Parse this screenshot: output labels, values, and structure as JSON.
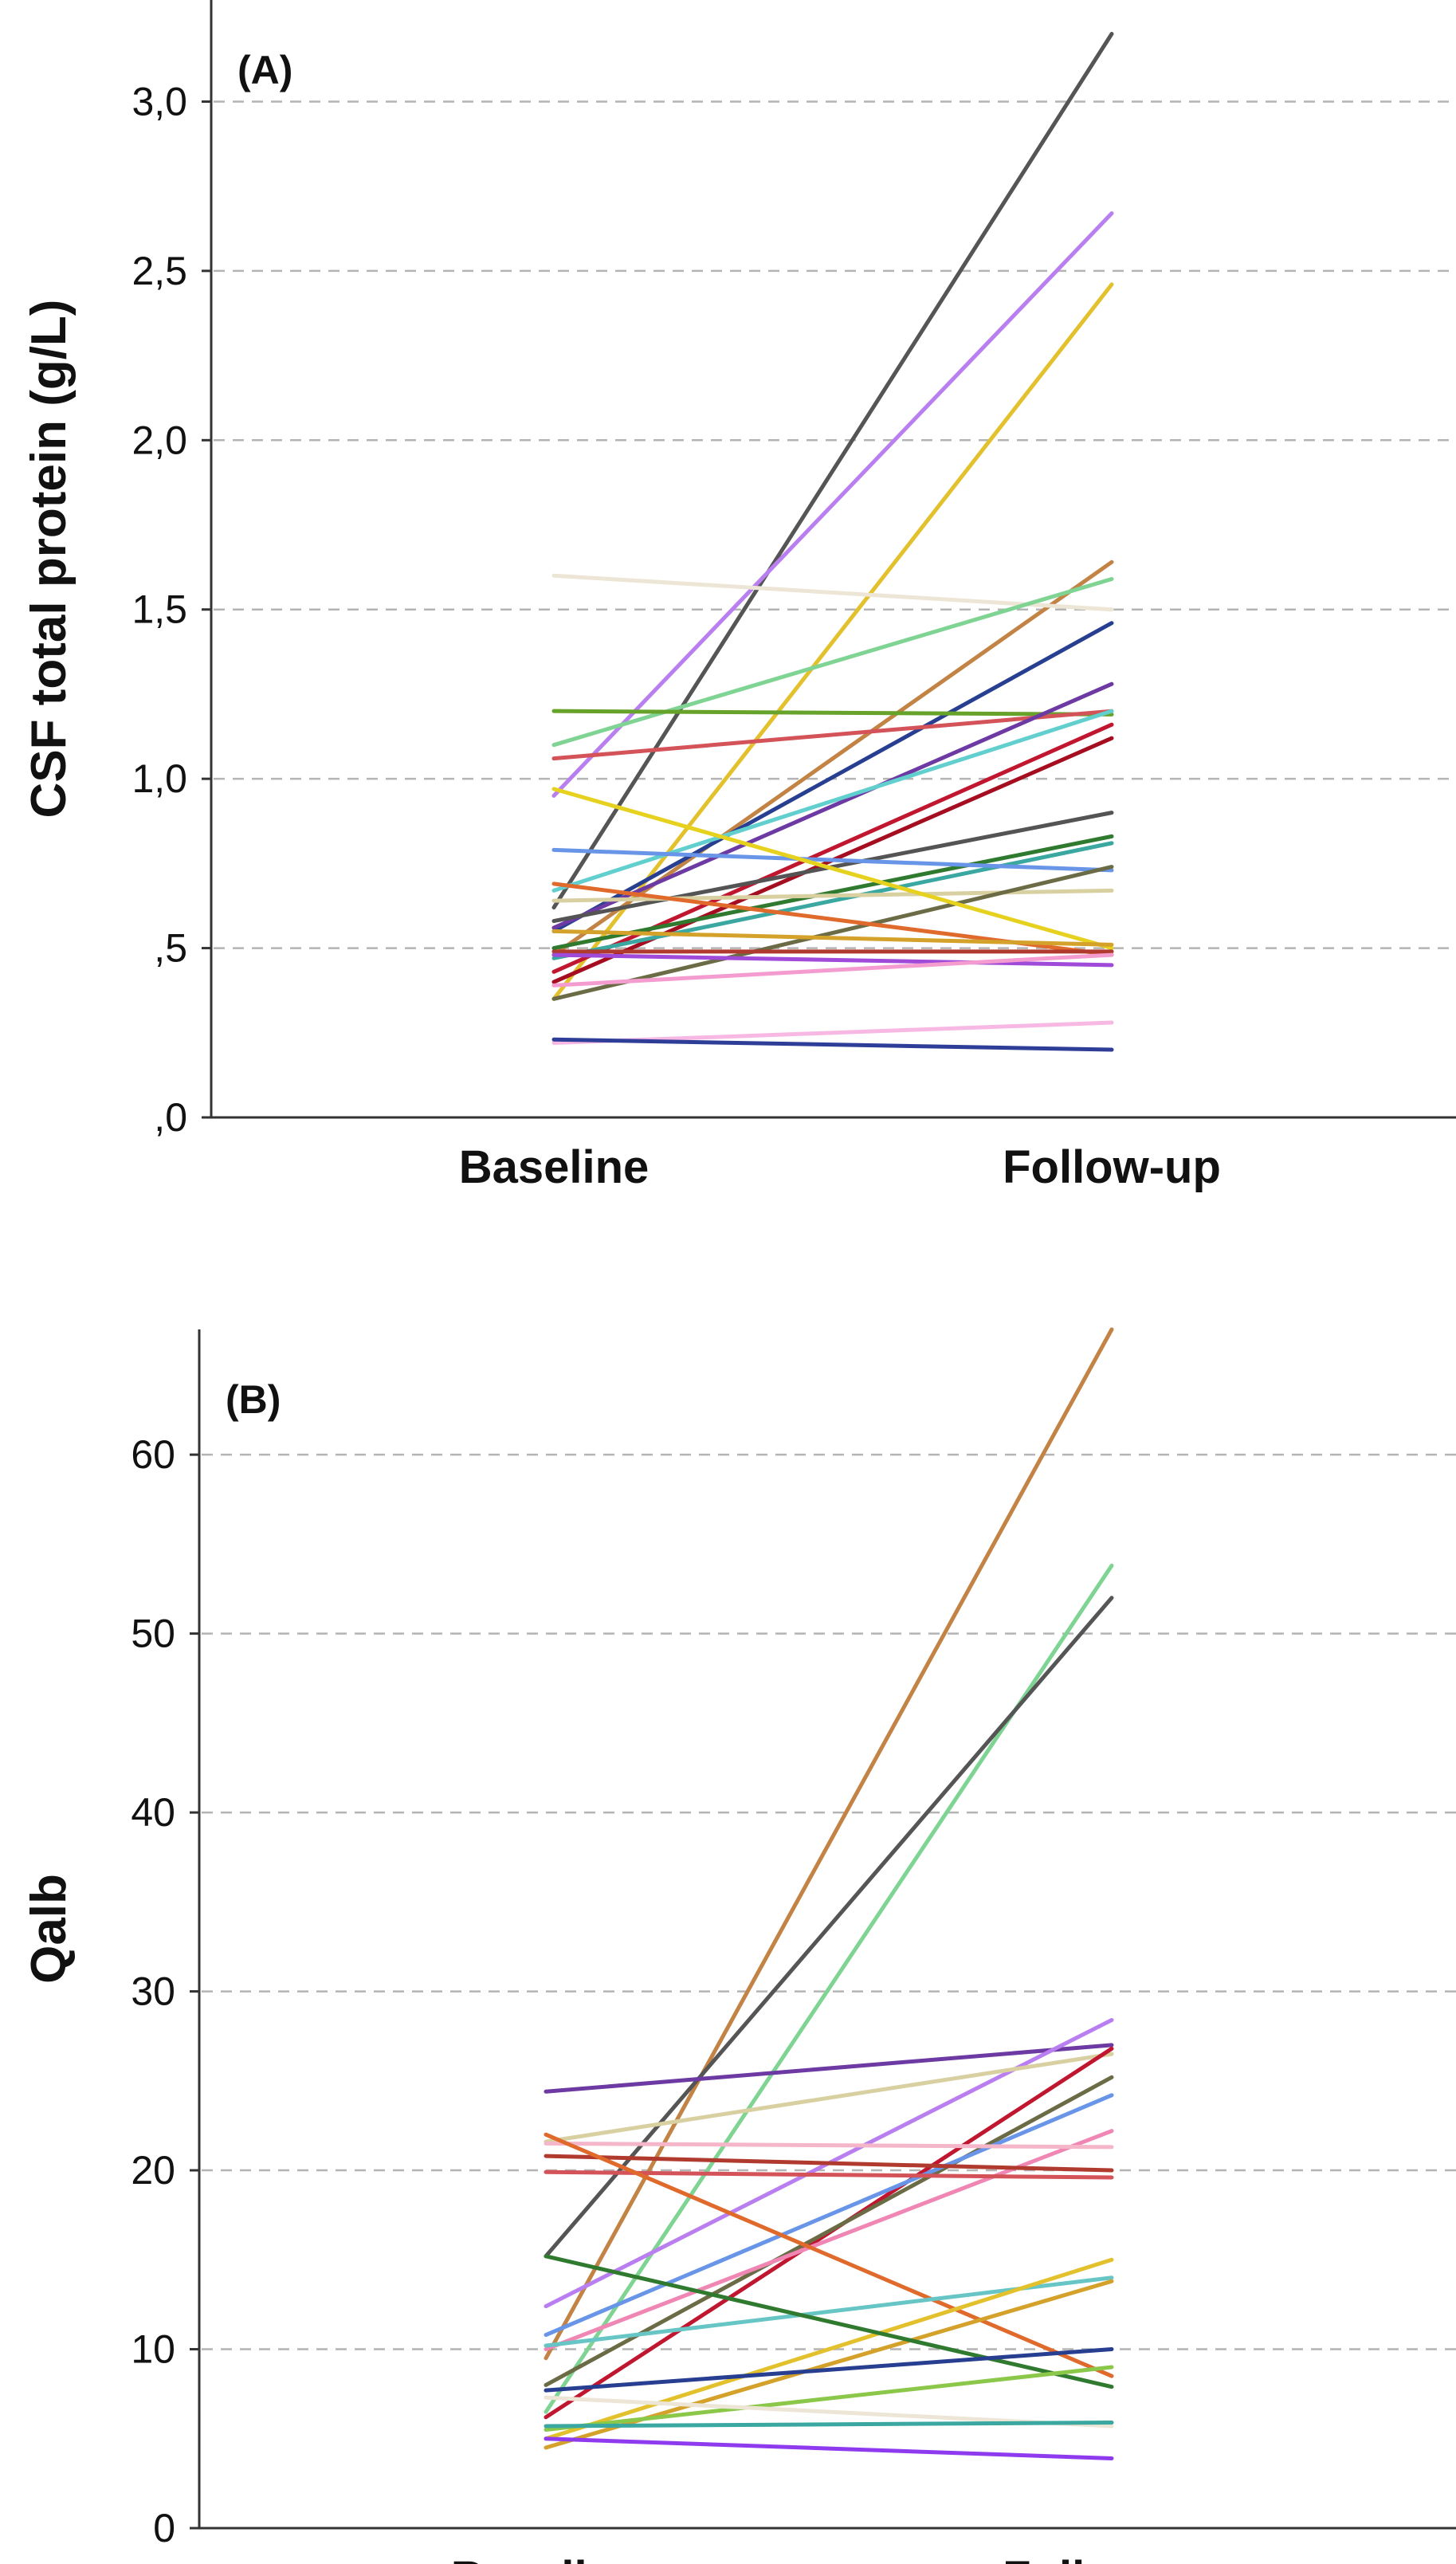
{
  "chart_data": [
    {
      "type": "line",
      "panel_label": "(A)",
      "title": "",
      "xlabel": "",
      "ylabel": "CSF total protein (g/L)",
      "categories": [
        "Baseline",
        "Follow-up"
      ],
      "ylim": [
        0,
        3.3
      ],
      "yticks": [
        {
          "value": 0,
          "label": ",0"
        },
        {
          "value": 0.5,
          "label": ",5"
        },
        {
          "value": 1.0,
          "label": "1,0"
        },
        {
          "value": 1.5,
          "label": "1,5"
        },
        {
          "value": 2.0,
          "label": "2,0"
        },
        {
          "value": 2.5,
          "label": "2,5"
        },
        {
          "value": 3.0,
          "label": "3,0"
        }
      ],
      "grid": true,
      "grid_values": [
        0.5,
        1.0,
        1.5,
        2.0,
        2.5,
        3.0
      ],
      "series": [
        {
          "color": "#555555",
          "values": [
            0.62,
            3.2
          ]
        },
        {
          "color": "#b97ff0",
          "values": [
            0.95,
            2.67
          ]
        },
        {
          "color": "#e3c12d",
          "values": [
            0.35,
            2.46
          ]
        },
        {
          "color": "#c28344",
          "values": [
            0.48,
            1.64
          ]
        },
        {
          "color": "#ede6d6",
          "values": [
            1.6,
            1.5
          ]
        },
        {
          "color": "#7fd493",
          "values": [
            1.1,
            1.59
          ]
        },
        {
          "color": "#273e91",
          "values": [
            0.55,
            1.46
          ]
        },
        {
          "color": "#67a22a",
          "values": [
            1.2,
            1.19
          ]
        },
        {
          "color": "#d35359",
          "values": [
            1.06,
            1.2
          ]
        },
        {
          "color": "#6d3aa3",
          "values": [
            0.56,
            1.28
          ]
        },
        {
          "color": "#62cfcf",
          "values": [
            0.67,
            1.2
          ]
        },
        {
          "color": "#c01630",
          "values": [
            0.43,
            1.16
          ]
        },
        {
          "color": "#a50d20",
          "values": [
            0.4,
            1.12
          ]
        },
        {
          "color": "#545454",
          "values": [
            0.58,
            0.9
          ]
        },
        {
          "color": "#2f7a2f",
          "values": [
            0.5,
            0.83
          ]
        },
        {
          "color": "#3aa7a0",
          "values": [
            0.47,
            0.81
          ]
        },
        {
          "color": "#6895e8",
          "values": [
            0.79,
            0.73
          ]
        },
        {
          "color": "#d9d0a2",
          "values": [
            0.64,
            0.67
          ]
        },
        {
          "color": "#6b6b45",
          "values": [
            0.35,
            0.74
          ]
        },
        {
          "color": "#e6d21e",
          "values": [
            0.97,
            0.5
          ]
        },
        {
          "color": "#e06a2c",
          "values": [
            0.69,
            0.48
          ]
        },
        {
          "color": "#d4a12a",
          "values": [
            0.55,
            0.51
          ]
        },
        {
          "color": "#b03a2e",
          "values": [
            0.49,
            0.49
          ]
        },
        {
          "color": "#9f4ad8",
          "values": [
            0.48,
            0.45
          ]
        },
        {
          "color": "#f49bd0",
          "values": [
            0.39,
            0.48
          ]
        },
        {
          "color": "#f7b9e4",
          "values": [
            0.22,
            0.28
          ]
        },
        {
          "color": "#2e3e98",
          "values": [
            0.23,
            0.2
          ]
        }
      ]
    },
    {
      "type": "line",
      "panel_label": "(B)",
      "title": "",
      "xlabel": "",
      "ylabel": "Qalb",
      "categories": [
        "Baseline",
        "Follow-up"
      ],
      "ylim": [
        0,
        67
      ],
      "yticks": [
        {
          "value": 0,
          "label": "0"
        },
        {
          "value": 10,
          "label": "10"
        },
        {
          "value": 20,
          "label": "20"
        },
        {
          "value": 30,
          "label": "30"
        },
        {
          "value": 40,
          "label": "40"
        },
        {
          "value": 50,
          "label": "50"
        },
        {
          "value": 60,
          "label": "60"
        }
      ],
      "grid": true,
      "grid_values": [
        10,
        20,
        30,
        40,
        50,
        60
      ],
      "series": [
        {
          "color": "#c28344",
          "values": [
            9.5,
            67.0
          ]
        },
        {
          "color": "#7fd493",
          "values": [
            6.5,
            53.8
          ]
        },
        {
          "color": "#555555",
          "values": [
            15.2,
            52.0
          ]
        },
        {
          "color": "#6d3aa3",
          "values": [
            24.4,
            27.0
          ]
        },
        {
          "color": "#b97ff0",
          "values": [
            12.4,
            28.4
          ]
        },
        {
          "color": "#d9d0a2",
          "values": [
            21.6,
            26.5
          ]
        },
        {
          "color": "#c01630",
          "values": [
            6.2,
            26.8
          ]
        },
        {
          "color": "#6b6b45",
          "values": [
            8.0,
            25.2
          ]
        },
        {
          "color": "#6895e8",
          "values": [
            10.8,
            24.2
          ]
        },
        {
          "color": "#f086b3",
          "values": [
            10.0,
            22.2
          ]
        },
        {
          "color": "#f4b6c8",
          "values": [
            21.5,
            21.3
          ]
        },
        {
          "color": "#b03a2e",
          "values": [
            20.8,
            20.0
          ]
        },
        {
          "color": "#d35359",
          "values": [
            19.9,
            19.6
          ]
        },
        {
          "color": "#e06a2c",
          "values": [
            22.0,
            8.5
          ]
        },
        {
          "color": "#67c5c5",
          "values": [
            10.2,
            14.0
          ]
        },
        {
          "color": "#e3c12d",
          "values": [
            5.0,
            15.0
          ]
        },
        {
          "color": "#d4a12a",
          "values": [
            4.5,
            13.8
          ]
        },
        {
          "color": "#2f7a2f",
          "values": [
            15.2,
            7.9
          ]
        },
        {
          "color": "#273e91",
          "values": [
            7.7,
            10.0
          ]
        },
        {
          "color": "#8bc84a",
          "values": [
            5.5,
            9.0
          ]
        },
        {
          "color": "#ede6d6",
          "values": [
            7.3,
            5.7
          ]
        },
        {
          "color": "#3aa7a0",
          "values": [
            5.7,
            5.9
          ]
        },
        {
          "color": "#8e3bf0",
          "values": [
            5.0,
            3.9
          ]
        }
      ]
    }
  ]
}
